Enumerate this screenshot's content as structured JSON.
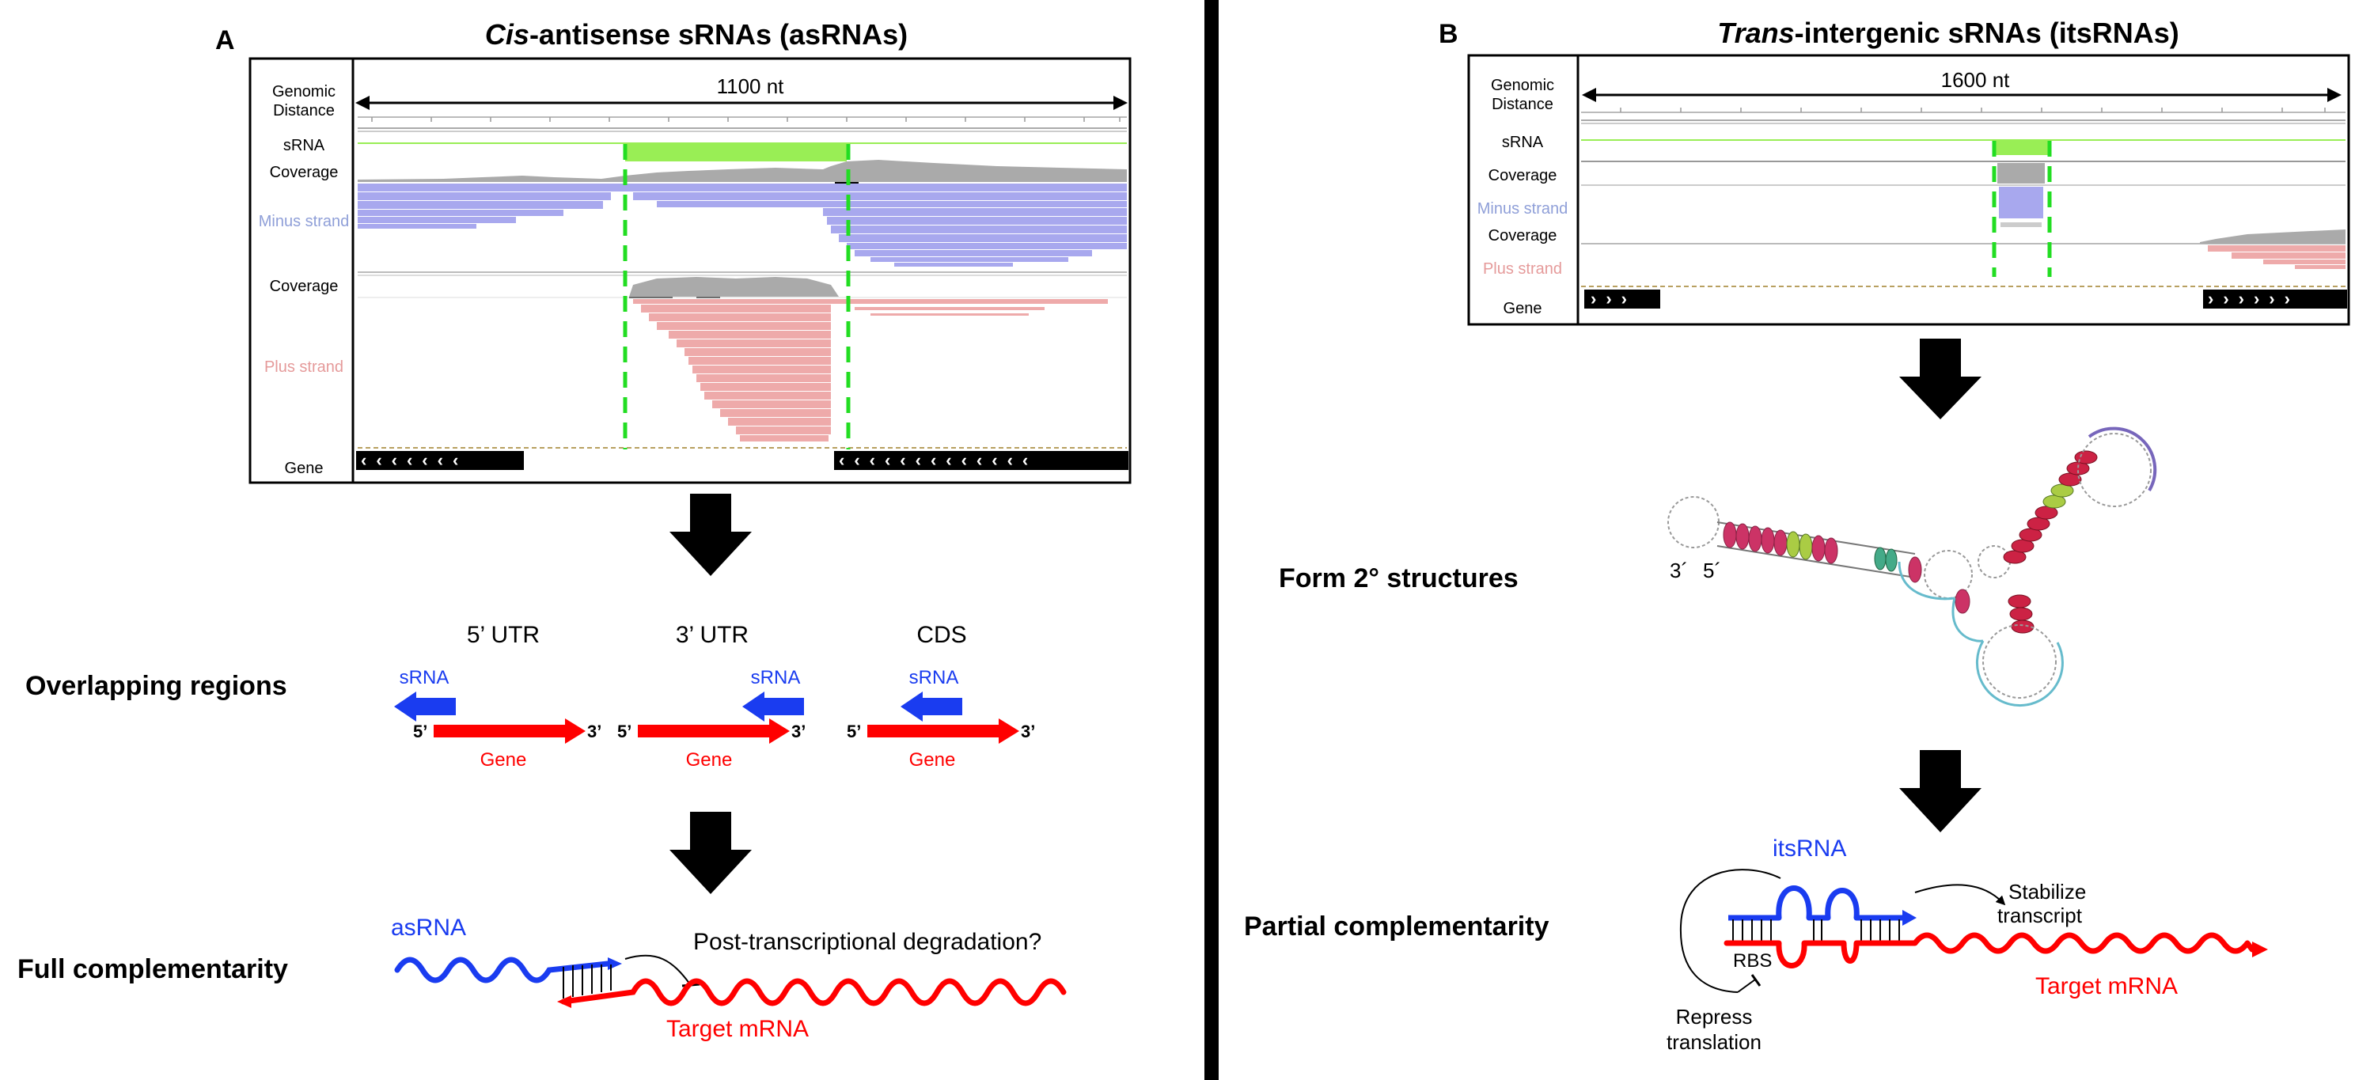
{
  "panelA": {
    "letter": "A",
    "title_italic": "Cis",
    "title_rest": "-antisense sRNAs (asRNAs)",
    "distance": "1100 nt",
    "tracks": {
      "genomic1": "Genomic",
      "genomic2": "Distance",
      "srna": "sRNA",
      "coverage1": "Coverage",
      "minus": "Minus strand",
      "coverage2": "Coverage",
      "plus": "Plus strand",
      "gene": "Gene"
    },
    "row1_label": "Overlapping regions",
    "regions": [
      {
        "title": "5’ UTR",
        "srna": "sRNA",
        "gene": "Gene",
        "five": "5’",
        "three": "3’"
      },
      {
        "title": "3’ UTR",
        "srna": "sRNA",
        "gene": "Gene",
        "five": "5’",
        "three": "3’"
      },
      {
        "title": "CDS",
        "srna": "sRNA",
        "gene": "Gene",
        "five": "5’",
        "three": "3’"
      }
    ],
    "row2_label": "Full complementarity",
    "asrna": "asRNA",
    "degradation": "Post-transcriptional  degradation?",
    "target": "Target mRNA"
  },
  "panelB": {
    "letter": "B",
    "title_italic": "Trans",
    "title_rest": "-intergenic sRNAs (itsRNAs)",
    "distance": "1600 nt",
    "tracks": {
      "genomic1": "Genomic",
      "genomic2": "Distance",
      "srna": "sRNA",
      "coverage1": "Coverage",
      "minus": "Minus strand",
      "coverage2": "Coverage",
      "plus": "Plus strand",
      "gene": "Gene"
    },
    "row1_label": "Form 2° structures",
    "end3": "3´",
    "end5": "5´",
    "row2_label": "Partial complementarity",
    "itsrna": "itsRNA",
    "stabilize1": "Stabilize",
    "stabilize2": "transcript",
    "rbs": "RBS",
    "repress1": "Repress",
    "repress2": "translation",
    "target": "Target mRNA"
  },
  "colors": {
    "srna_blue": "#1a3cf0",
    "gene_red": "#ff0000",
    "srna_green": "#99ee55",
    "dash_green": "#22dd22",
    "minus_strand": "#a8a8ee",
    "plus_strand": "#eeaaaa",
    "coverage": "#aaaaaa",
    "minus_label": "#8f9fd8",
    "plus_label": "#e59a9a"
  }
}
